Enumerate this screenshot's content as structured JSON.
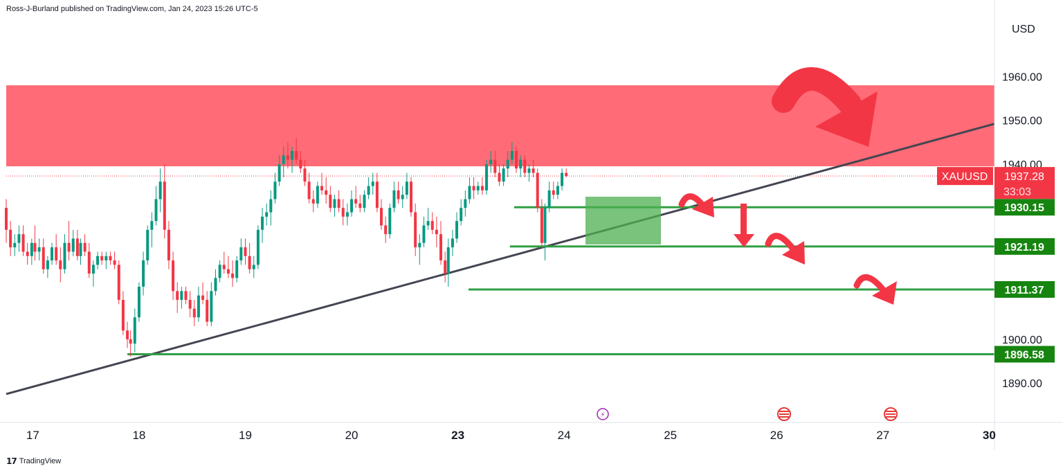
{
  "header": {
    "published_by": "Ross-J-Burland published on TradingView.com, Jan 24, 2023 15:26 UTC-5"
  },
  "footer": {
    "brand": "TradingView"
  },
  "chart_data": {
    "type": "candlestick",
    "symbol": "XAUUSD",
    "currency": "USD",
    "last_price": "1937.28",
    "countdown": "33:03",
    "ylim": [
      1881,
      1974
    ],
    "y_ticks": [
      "1960.00",
      "1950.00",
      "1940.00",
      "1900.00",
      "1890.00"
    ],
    "x_ticks": [
      {
        "label": "17",
        "day": 16.97,
        "bold": false
      },
      {
        "label": "18",
        "day": 17.97,
        "bold": false
      },
      {
        "label": "19",
        "day": 18.97,
        "bold": false
      },
      {
        "label": "20",
        "day": 19.97,
        "bold": false
      },
      {
        "label": "23",
        "day": 20.97,
        "bold": true
      },
      {
        "label": "24",
        "day": 21.97,
        "bold": false
      },
      {
        "label": "25",
        "day": 22.97,
        "bold": false
      },
      {
        "label": "26",
        "day": 23.97,
        "bold": false
      },
      {
        "label": "27",
        "day": 24.97,
        "bold": false
      },
      {
        "label": "30",
        "day": 25.97,
        "bold": true
      }
    ],
    "resistance_zone": {
      "low": 1939.5,
      "high": 1958,
      "color": "#ff6b76"
    },
    "levels": [
      {
        "price": 1930.15,
        "label": "1930.15",
        "from_day": 21.5
      },
      {
        "price": 1921.19,
        "label": "1921.19",
        "from_day": 21.46
      },
      {
        "price": 1911.37,
        "label": "1911.37",
        "from_day": 21.07
      },
      {
        "price": 1896.58,
        "label": "1896.58",
        "from_day": 17.86
      }
    ],
    "trendline": [
      {
        "day": 16.72,
        "price": 1887.5
      },
      {
        "day": 26.02,
        "price": 1949.2
      }
    ],
    "candles": [
      [
        16.72,
        1930,
        1932,
        1922,
        1925
      ],
      [
        16.76,
        1925,
        1927,
        1919,
        1921
      ],
      [
        16.8,
        1921,
        1924,
        1919,
        1922
      ],
      [
        16.84,
        1922,
        1926,
        1920,
        1924
      ],
      [
        16.88,
        1924,
        1926,
        1919,
        1920
      ],
      [
        16.92,
        1920,
        1922,
        1917,
        1919
      ],
      [
        16.96,
        1919,
        1923,
        1917,
        1922
      ],
      [
        16.99,
        1922,
        1926,
        1918,
        1920
      ],
      [
        17.03,
        1920,
        1923,
        1918,
        1921
      ],
      [
        17.07,
        1921,
        1923,
        1915,
        1916
      ],
      [
        17.11,
        1916,
        1919,
        1914,
        1918
      ],
      [
        17.15,
        1918,
        1922,
        1917,
        1921
      ],
      [
        17.19,
        1921,
        1924,
        1917,
        1918
      ],
      [
        17.23,
        1918,
        1921,
        1913,
        1916
      ],
      [
        17.27,
        1916,
        1924,
        1915,
        1922
      ],
      [
        17.31,
        1922,
        1927,
        1918,
        1920
      ],
      [
        17.35,
        1920,
        1925,
        1919,
        1923
      ],
      [
        17.39,
        1923,
        1925,
        1918,
        1919
      ],
      [
        17.42,
        1919,
        1923,
        1917,
        1922
      ],
      [
        17.46,
        1922,
        1924,
        1919,
        1920
      ],
      [
        17.5,
        1920,
        1922,
        1914,
        1915
      ],
      [
        17.54,
        1915,
        1918,
        1912,
        1917
      ],
      [
        17.58,
        1917,
        1920,
        1916,
        1919
      ],
      [
        17.62,
        1919,
        1920,
        1917,
        1918
      ],
      [
        17.66,
        1918,
        1920,
        1916,
        1919
      ],
      [
        17.7,
        1919,
        1920,
        1917,
        1918
      ],
      [
        17.74,
        1918,
        1920,
        1916,
        1917
      ],
      [
        17.78,
        1917,
        1918,
        1908,
        1909
      ],
      [
        17.82,
        1909,
        1911,
        1901,
        1902
      ],
      [
        17.86,
        1902,
        1904,
        1898,
        1900
      ],
      [
        17.89,
        1900,
        1902,
        1896,
        1899
      ],
      [
        17.93,
        1899,
        1907,
        1897,
        1905
      ],
      [
        17.97,
        1905,
        1913,
        1904,
        1912
      ],
      [
        18.01,
        1912,
        1920,
        1910,
        1918
      ],
      [
        18.05,
        1918,
        1926,
        1917,
        1925
      ],
      [
        18.09,
        1925,
        1929,
        1921,
        1927
      ],
      [
        18.13,
        1927,
        1935,
        1926,
        1932
      ],
      [
        18.17,
        1932,
        1939,
        1929,
        1936
      ],
      [
        18.21,
        1936,
        1940,
        1923,
        1925
      ],
      [
        18.25,
        1925,
        1927,
        1916,
        1918
      ],
      [
        18.29,
        1918,
        1920,
        1909,
        1911
      ],
      [
        18.33,
        1911,
        1913,
        1906,
        1909
      ],
      [
        18.37,
        1909,
        1912,
        1907,
        1911
      ],
      [
        18.41,
        1911,
        1912,
        1908,
        1909
      ],
      [
        18.45,
        1909,
        1911,
        1905,
        1907
      ],
      [
        18.49,
        1907,
        1909,
        1903,
        1905
      ],
      [
        18.53,
        1905,
        1912,
        1904,
        1910
      ],
      [
        18.57,
        1910,
        1913,
        1908,
        1909
      ],
      [
        18.61,
        1909,
        1911,
        1903,
        1904
      ],
      [
        18.65,
        1904,
        1913,
        1903,
        1911
      ],
      [
        18.69,
        1911,
        1916,
        1910,
        1914
      ],
      [
        18.73,
        1914,
        1918,
        1913,
        1917
      ],
      [
        18.77,
        1917,
        1920,
        1915,
        1916
      ],
      [
        18.81,
        1916,
        1919,
        1914,
        1915
      ],
      [
        18.85,
        1915,
        1918,
        1912,
        1914
      ],
      [
        18.89,
        1914,
        1919,
        1913,
        1918
      ],
      [
        18.93,
        1918,
        1923,
        1917,
        1921
      ],
      [
        18.97,
        1921,
        1923,
        1917,
        1919
      ],
      [
        19.01,
        1919,
        1922,
        1915,
        1916
      ],
      [
        19.05,
        1916,
        1919,
        1914,
        1917
      ],
      [
        19.09,
        1917,
        1926,
        1916,
        1925
      ],
      [
        19.13,
        1925,
        1930,
        1922,
        1928
      ],
      [
        19.17,
        1928,
        1931,
        1926,
        1929
      ],
      [
        19.21,
        1929,
        1934,
        1926,
        1932
      ],
      [
        19.25,
        1932,
        1938,
        1931,
        1936
      ],
      [
        19.29,
        1936,
        1942,
        1935,
        1940
      ],
      [
        19.33,
        1940,
        1944,
        1937,
        1942
      ],
      [
        19.37,
        1942,
        1945,
        1939,
        1941
      ],
      [
        19.41,
        1941,
        1944,
        1938,
        1943
      ],
      [
        19.45,
        1943,
        1946,
        1940,
        1941
      ],
      [
        19.49,
        1941,
        1943,
        1938,
        1939
      ],
      [
        19.53,
        1939,
        1941,
        1935,
        1936
      ],
      [
        19.57,
        1936,
        1938,
        1931,
        1932
      ],
      [
        19.61,
        1932,
        1934,
        1929,
        1931
      ],
      [
        19.65,
        1931,
        1936,
        1930,
        1935
      ],
      [
        19.69,
        1935,
        1938,
        1933,
        1934
      ],
      [
        19.73,
        1934,
        1937,
        1931,
        1933
      ],
      [
        19.77,
        1933,
        1935,
        1929,
        1930
      ],
      [
        19.81,
        1930,
        1933,
        1928,
        1932
      ],
      [
        19.85,
        1932,
        1934,
        1929,
        1930
      ],
      [
        19.89,
        1930,
        1932,
        1926,
        1928
      ],
      [
        19.93,
        1928,
        1931,
        1926,
        1929
      ],
      [
        19.97,
        1929,
        1934,
        1928,
        1932
      ],
      [
        20.01,
        1932,
        1935,
        1930,
        1931
      ],
      [
        20.05,
        1931,
        1933,
        1929,
        1930
      ],
      [
        20.09,
        1930,
        1934,
        1929,
        1933
      ],
      [
        20.13,
        1933,
        1937,
        1932,
        1935
      ],
      [
        20.17,
        1935,
        1938,
        1933,
        1936
      ],
      [
        20.21,
        1936,
        1938,
        1929,
        1930
      ],
      [
        20.25,
        1930,
        1932,
        1925,
        1926
      ],
      [
        20.29,
        1926,
        1928,
        1922,
        1924
      ],
      [
        20.33,
        1924,
        1931,
        1923,
        1930
      ],
      [
        20.37,
        1930,
        1936,
        1929,
        1934
      ],
      [
        20.41,
        1934,
        1936,
        1931,
        1932
      ],
      [
        20.45,
        1932,
        1935,
        1930,
        1933
      ],
      [
        20.49,
        1933,
        1938,
        1932,
        1936
      ],
      [
        20.53,
        1936,
        1937,
        1928,
        1929
      ],
      [
        20.57,
        1929,
        1931,
        1919,
        1921
      ],
      [
        20.61,
        1921,
        1924,
        1917,
        1922
      ],
      [
        20.65,
        1922,
        1928,
        1921,
        1926
      ],
      [
        20.69,
        1926,
        1930,
        1925,
        1927
      ],
      [
        20.73,
        1927,
        1929,
        1924,
        1925
      ],
      [
        20.77,
        1925,
        1928,
        1921,
        1924
      ],
      [
        20.81,
        1924,
        1927,
        1917,
        1918
      ],
      [
        20.85,
        1918,
        1920,
        1913,
        1915
      ],
      [
        20.88,
        1915,
        1923,
        1912,
        1921
      ],
      [
        20.92,
        1921,
        1925,
        1919,
        1923
      ],
      [
        20.96,
        1923,
        1929,
        1922,
        1927
      ],
      [
        21,
        1927,
        1932,
        1926,
        1930
      ],
      [
        21.04,
        1930,
        1934,
        1928,
        1932
      ],
      [
        21.08,
        1932,
        1937,
        1931,
        1935
      ],
      [
        21.12,
        1935,
        1937,
        1932,
        1934
      ],
      [
        21.16,
        1934,
        1936,
        1933,
        1935
      ],
      [
        21.2,
        1935,
        1937,
        1933,
        1934
      ],
      [
        21.24,
        1934,
        1941,
        1933,
        1940
      ],
      [
        21.28,
        1940,
        1943,
        1938,
        1941
      ],
      [
        21.32,
        1941,
        1943,
        1937,
        1938
      ],
      [
        21.36,
        1938,
        1940,
        1935,
        1936
      ],
      [
        21.4,
        1936,
        1940,
        1935,
        1939
      ],
      [
        21.44,
        1939,
        1943,
        1937,
        1941
      ],
      [
        21.48,
        1941,
        1945,
        1940,
        1943
      ],
      [
        21.52,
        1943,
        1944,
        1938,
        1939
      ],
      [
        21.56,
        1939,
        1942,
        1937,
        1941
      ],
      [
        21.6,
        1941,
        1942,
        1937,
        1938
      ],
      [
        21.64,
        1938,
        1940,
        1936,
        1939
      ],
      [
        21.68,
        1939,
        1941,
        1937,
        1938
      ],
      [
        21.72,
        1938,
        1939,
        1929,
        1930
      ],
      [
        21.76,
        1930,
        1932,
        1921,
        1922
      ],
      [
        21.79,
        1922,
        1931,
        1918,
        1930
      ],
      [
        21.83,
        1930,
        1936,
        1929,
        1934
      ],
      [
        21.87,
        1934,
        1936,
        1932,
        1933
      ],
      [
        21.91,
        1933,
        1936,
        1932,
        1935
      ],
      [
        21.95,
        1935,
        1939,
        1934,
        1938
      ],
      [
        21.99,
        1938,
        1939,
        1937,
        1937.28
      ]
    ]
  }
}
